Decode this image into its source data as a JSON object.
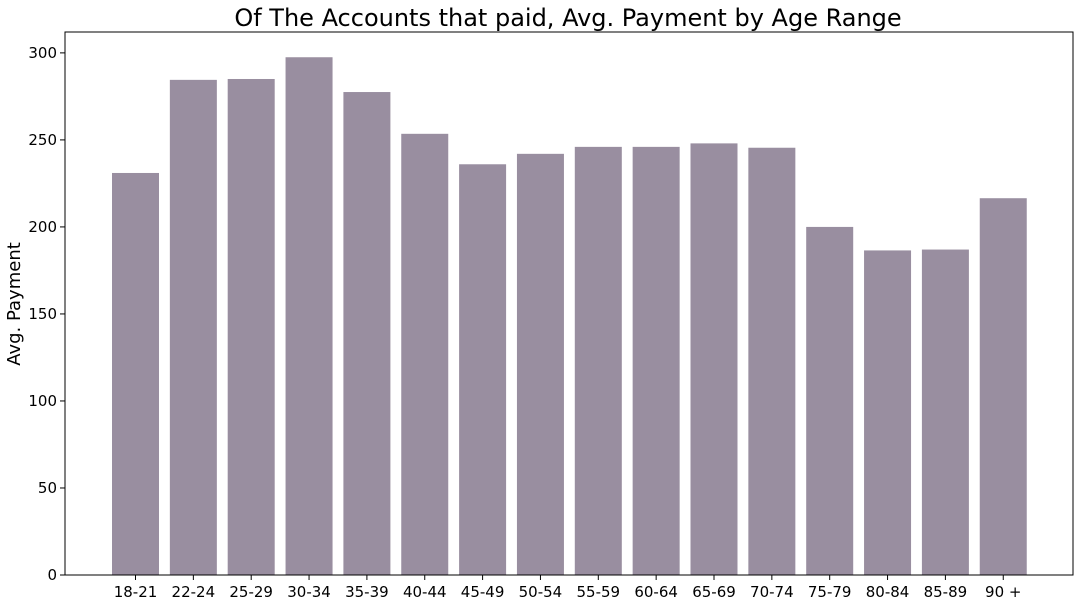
{
  "chart_data": {
    "type": "bar",
    "title": "Of The Accounts that paid, Avg. Payment by Age Range",
    "xlabel": "",
    "ylabel": "Avg. Payment",
    "categories": [
      "18-21",
      "22-24",
      "25-29",
      "30-34",
      "35-39",
      "40-44",
      "45-49",
      "50-54",
      "55-59",
      "60-64",
      "65-69",
      "70-74",
      "75-79",
      "80-84",
      "85-89",
      "90 +"
    ],
    "values": [
      231,
      284.5,
      285,
      297.5,
      277.5,
      253.5,
      236,
      242,
      246,
      246,
      248,
      245.5,
      200,
      186.5,
      187,
      216.5
    ],
    "ylim": [
      0,
      312
    ],
    "yticks": [
      0,
      50,
      100,
      150,
      200,
      250,
      300
    ],
    "bar_color": "#998ea0",
    "grid": false,
    "legend": "none"
  }
}
